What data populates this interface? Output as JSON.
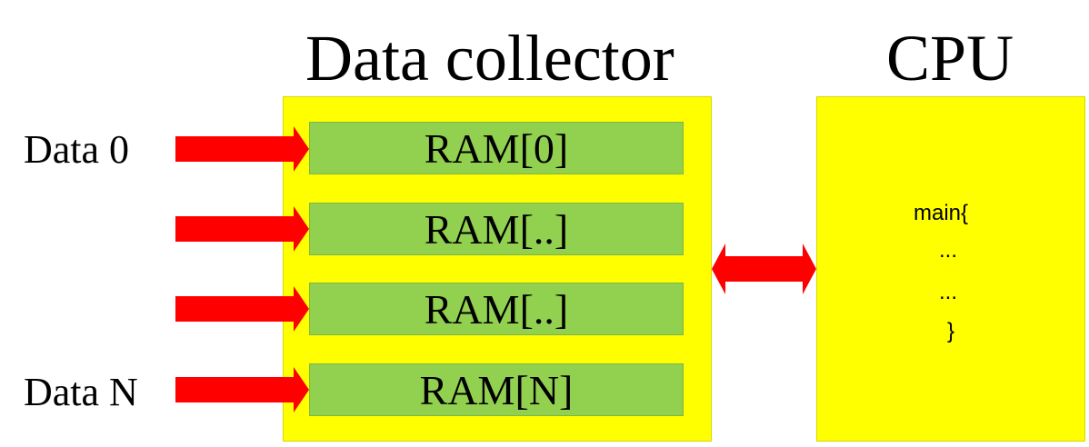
{
  "titles": {
    "collector": "Data collector",
    "cpu": "CPU"
  },
  "inputs": [
    {
      "label": "Data 0"
    },
    {
      "label": ""
    },
    {
      "label": ""
    },
    {
      "label": "Data N"
    }
  ],
  "ram_slots": [
    "RAM[0]",
    "RAM[..]",
    "RAM[..]",
    "RAM[N]"
  ],
  "cpu_code": [
    "main{",
    "...",
    "...",
    "}"
  ],
  "colors": {
    "box_fill": "#ffff00",
    "ram_fill": "#92d050",
    "arrow": "#ff0000"
  }
}
